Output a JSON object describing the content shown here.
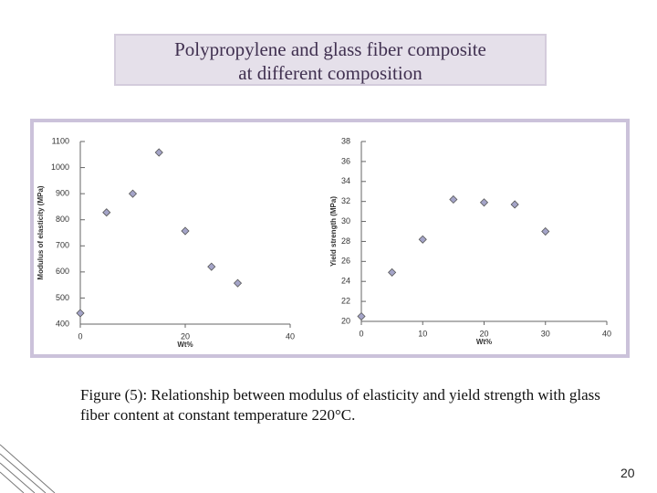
{
  "title_lines": [
    "Polypropylene and glass fiber composite",
    "at different composition"
  ],
  "chart_data": [
    {
      "type": "scatter",
      "y_label": "Modulus of elasticity (MPa)",
      "x_label": "Wt%",
      "x": [
        0,
        5,
        10,
        15,
        20,
        25,
        30
      ],
      "values": [
        442,
        828,
        900,
        1058,
        757,
        620,
        557
      ],
      "xlim": [
        0,
        40
      ],
      "xticks": [
        0,
        20,
        40
      ],
      "ylim": [
        400,
        1100
      ],
      "yticks": [
        400,
        500,
        600,
        700,
        800,
        900,
        1000,
        1100
      ],
      "color": "#a4a4c8"
    },
    {
      "type": "scatter",
      "y_label": "Yield strength (MPa)",
      "x_label": "Wt%",
      "x": [
        0,
        5,
        10,
        15,
        20,
        25,
        30
      ],
      "values": [
        20.5,
        24.9,
        28.2,
        32.2,
        31.9,
        31.7,
        29.0
      ],
      "xlim": [
        0,
        40
      ],
      "xticks": [
        0,
        10,
        20,
        30,
        40
      ],
      "ylim": [
        20,
        38
      ],
      "yticks": [
        20,
        22,
        24,
        26,
        28,
        30,
        32,
        34,
        36,
        38
      ],
      "color": "#a4a4c8"
    }
  ],
  "caption": "Figure (5): Relationship between  modulus of elasticity and yield strength with glass fiber content at constant temperature 220°C.",
  "page_number": "20"
}
